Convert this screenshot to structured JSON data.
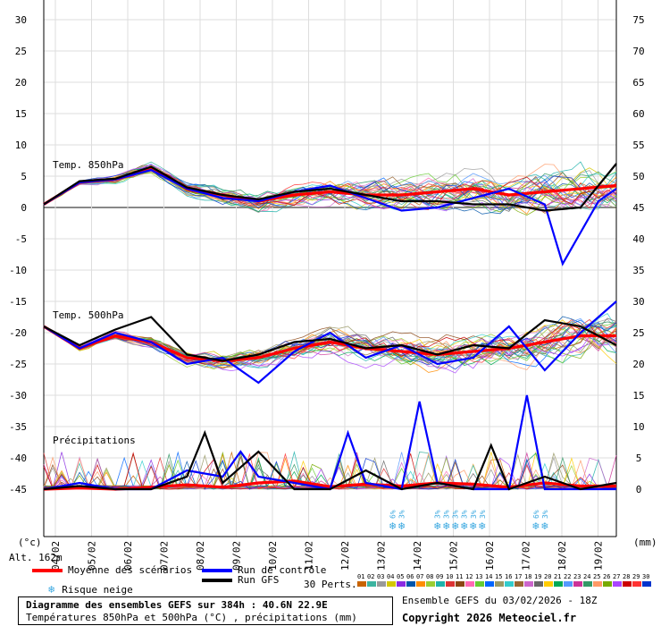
{
  "chart_data": {
    "type": "line",
    "panel_labels": {
      "t850": "Temp. 850hPa",
      "t500": "Temp. 500hPa",
      "precip": "Précipitations"
    },
    "x_tick_labels": [
      "04/02",
      "05/02",
      "06/02",
      "07/02",
      "08/02",
      "09/02",
      "10/02",
      "11/02",
      "12/02",
      "13/02",
      "14/02",
      "15/02",
      "16/02",
      "17/02",
      "18/02",
      "19/02"
    ],
    "left_axis": {
      "unit": "(°c)",
      "ticks": [
        30,
        25,
        20,
        15,
        10,
        5,
        0,
        -5,
        -10,
        -15,
        -20,
        -25,
        -30,
        -35,
        -40,
        -45
      ],
      "range": [
        -45,
        30
      ]
    },
    "right_axis": {
      "unit": "(mm)",
      "ticks": [
        75,
        70,
        65,
        60,
        55,
        50,
        45,
        40,
        35,
        30,
        25,
        20,
        15,
        10,
        5,
        0
      ],
      "range": [
        0,
        75
      ]
    },
    "grid": true,
    "series": [
      {
        "name": "Moyenne des scénarios",
        "panel": "t850",
        "color": "#ff0000",
        "x_hours": [
          0,
          24,
          48,
          72,
          96,
          120,
          144,
          168,
          192,
          216,
          240,
          264,
          288,
          312,
          336,
          360,
          384
        ],
        "values": [
          0.5,
          4.0,
          4.5,
          6.3,
          3.0,
          2.0,
          1.0,
          2.0,
          2.5,
          2.0,
          2.0,
          2.5,
          3.0,
          2.0,
          2.5,
          3.0,
          3.5
        ]
      },
      {
        "name": "Run de contrôle",
        "panel": "t850",
        "color": "#0000ff",
        "x_hours": [
          0,
          24,
          48,
          72,
          96,
          120,
          144,
          168,
          192,
          216,
          240,
          264,
          288,
          312,
          336,
          348,
          360,
          372,
          384
        ],
        "values": [
          0.5,
          4.0,
          4.5,
          6.0,
          3.0,
          1.5,
          1.0,
          2.5,
          3.5,
          1.5,
          -0.5,
          0.0,
          1.5,
          3.0,
          0.5,
          -9.0,
          -4.0,
          1.0,
          3.0
        ]
      },
      {
        "name": "Run GFS",
        "panel": "t850",
        "color": "#000000",
        "x_hours": [
          0,
          24,
          48,
          72,
          96,
          120,
          144,
          168,
          192,
          216,
          240,
          264,
          288,
          312,
          336,
          360,
          384
        ],
        "values": [
          0.5,
          4.2,
          4.6,
          6.5,
          3.2,
          2.0,
          1.3,
          2.5,
          3.0,
          2.0,
          1.0,
          1.0,
          0.5,
          0.5,
          -0.5,
          0.0,
          7.0
        ]
      },
      {
        "name": "Moyenne des scénarios",
        "panel": "t500",
        "color": "#ff0000",
        "x_hours": [
          0,
          24,
          48,
          72,
          96,
          120,
          144,
          168,
          192,
          216,
          240,
          264,
          288,
          312,
          336,
          360,
          384
        ],
        "values": [
          -19.0,
          -22.5,
          -20.5,
          -21.5,
          -24.0,
          -24.5,
          -24.0,
          -22.5,
          -21.5,
          -22.5,
          -23.0,
          -23.5,
          -23.0,
          -22.5,
          -21.5,
          -20.5,
          -20.5
        ]
      },
      {
        "name": "Run de contrôle",
        "panel": "t500",
        "color": "#0000ff",
        "x_hours": [
          0,
          24,
          48,
          72,
          96,
          120,
          144,
          168,
          192,
          216,
          240,
          264,
          288,
          312,
          336,
          360,
          384
        ],
        "values": [
          -19.0,
          -22.5,
          -20.0,
          -21.5,
          -25.0,
          -24.0,
          -28.0,
          -23.0,
          -20.0,
          -24.0,
          -22.0,
          -25.0,
          -24.0,
          -19.0,
          -26.0,
          -20.0,
          -15.0
        ]
      },
      {
        "name": "Run GFS",
        "panel": "t500",
        "color": "#000000",
        "x_hours": [
          0,
          24,
          48,
          72,
          96,
          120,
          144,
          168,
          192,
          216,
          240,
          264,
          288,
          312,
          336,
          360,
          384
        ],
        "values": [
          -19.0,
          -22.0,
          -19.5,
          -17.5,
          -23.5,
          -24.5,
          -23.5,
          -21.5,
          -21.0,
          -22.5,
          -22.0,
          -23.5,
          -22.0,
          -22.5,
          -18.0,
          -19.0,
          -22.0
        ]
      },
      {
        "name": "Moyenne des scénarios",
        "panel": "precip",
        "color": "#ff0000",
        "x_hours": [
          0,
          24,
          48,
          72,
          96,
          120,
          144,
          168,
          192,
          216,
          240,
          264,
          288,
          312,
          336,
          360,
          384
        ],
        "values": [
          0.0,
          0.2,
          0.0,
          0.3,
          0.7,
          0.3,
          1.0,
          1.3,
          0.4,
          0.8,
          0.5,
          1.0,
          0.8,
          0.3,
          1.0,
          0.5,
          0.5
        ]
      },
      {
        "name": "Run de contrôle",
        "panel": "precip",
        "color": "#0000ff",
        "x_hours": [
          0,
          24,
          48,
          72,
          96,
          120,
          132,
          144,
          168,
          192,
          204,
          216,
          240,
          252,
          264,
          288,
          312,
          324,
          336,
          360,
          384
        ],
        "values": [
          0.0,
          1.0,
          0.0,
          0.0,
          3.0,
          2.0,
          6.0,
          2.0,
          1.0,
          0.0,
          9.0,
          1.0,
          0.0,
          14.0,
          1.0,
          0.0,
          0.0,
          15.0,
          0.0,
          0.0,
          0.0
        ]
      },
      {
        "name": "Run GFS",
        "panel": "precip",
        "color": "#000000",
        "x_hours": [
          0,
          24,
          48,
          72,
          96,
          108,
          120,
          144,
          168,
          192,
          216,
          240,
          264,
          288,
          300,
          312,
          336,
          360,
          384
        ],
        "values": [
          0.0,
          0.5,
          0.0,
          0.0,
          2.0,
          9.0,
          1.0,
          6.0,
          0.0,
          0.0,
          3.0,
          0.0,
          1.0,
          0.0,
          7.0,
          0.0,
          2.0,
          0.0,
          1.0
        ]
      }
    ]
  },
  "snow_risk": {
    "label": "6%",
    "x_hours": [
      234,
      240
    ]
  },
  "snow_risk_2": {
    "labels": [
      "3%",
      "3%",
      "3%",
      "3%",
      "3%",
      "3%"
    ],
    "x_hours": [
      264,
      270,
      276,
      282,
      288,
      294
    ]
  },
  "snow_risk_3": {
    "labels": [
      "6%",
      "3%"
    ],
    "x_hours": [
      330,
      336
    ]
  },
  "legend": {
    "mean": "Moyenne des scénarios",
    "control": "Run de contrôle",
    "gfs": "Run GFS",
    "snow": "Risque neige",
    "perts": "30 Perts.",
    "pert_numbers": [
      "01",
      "02",
      "03",
      "04",
      "05",
      "06",
      "07",
      "08",
      "09",
      "10",
      "11",
      "12",
      "13",
      "14",
      "15",
      "16",
      "17",
      "18",
      "19",
      "20",
      "21",
      "22",
      "23",
      "24",
      "25",
      "26",
      "27",
      "28",
      "29",
      "30"
    ],
    "pert_colors": [
      "#c86400",
      "#3cb4a0",
      "#999999",
      "#d4c800",
      "#8a2be2",
      "#0055aa",
      "#ff8c00",
      "#9acd32",
      "#20b2aa",
      "#dd3333",
      "#8b4513",
      "#ff69b4",
      "#66cc33",
      "#0066ff",
      "#999966",
      "#33cccc",
      "#996633",
      "#cc66cc",
      "#666666",
      "#ffcc00",
      "#00aa55",
      "#5599ff",
      "#cc3399",
      "#339966",
      "#ff9966",
      "#77aa00",
      "#aa44ff",
      "#cc0000",
      "#ff3333",
      "#0033cc"
    ]
  },
  "info": {
    "altitude": "Alt. 162m",
    "title": "Diagramme des ensembles GEFS sur 384h : 40.6N 22.9E",
    "subtitle": "Températures 850hPa et 500hPa (°C) , précipitations (mm)",
    "run": "Ensemble GEFS du 03/02/2026 - 18Z",
    "copyright": "Copyright 2026 Meteociel.fr"
  }
}
